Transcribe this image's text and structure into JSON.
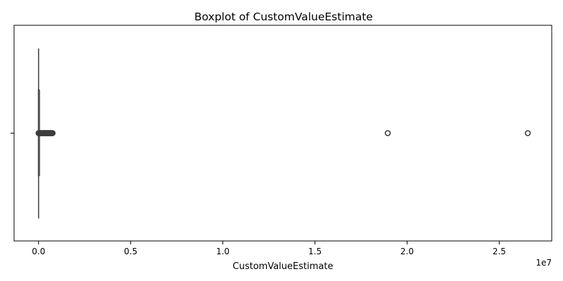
{
  "chart_data": {
    "type": "boxplot",
    "title": "Boxplot of CustomValueEstimate",
    "xlabel": "CustomValueEstimate",
    "ylabel": "",
    "orientation": "horizontal",
    "x_scale_offset": "1e7",
    "xlim": [
      -1330000,
      27850000
    ],
    "x_ticks": [
      0,
      5000000,
      10000000,
      15000000,
      20000000,
      25000000
    ],
    "x_tick_labels": [
      "0.0",
      "0.5",
      "1.0",
      "1.5",
      "2.0",
      "2.5"
    ],
    "box": {
      "whisker_low": 0,
      "q1": 0,
      "median": 0,
      "q3": 0,
      "whisker_high": 0
    },
    "outliers_dense_range": [
      0,
      760000
    ],
    "outliers": [
      18950000,
      26550000
    ],
    "grid": false,
    "legend": "none",
    "colors": {
      "box_edge": "#3d3d3d",
      "outlier_edge": "#3d3d3d",
      "axis": "#000000"
    }
  }
}
